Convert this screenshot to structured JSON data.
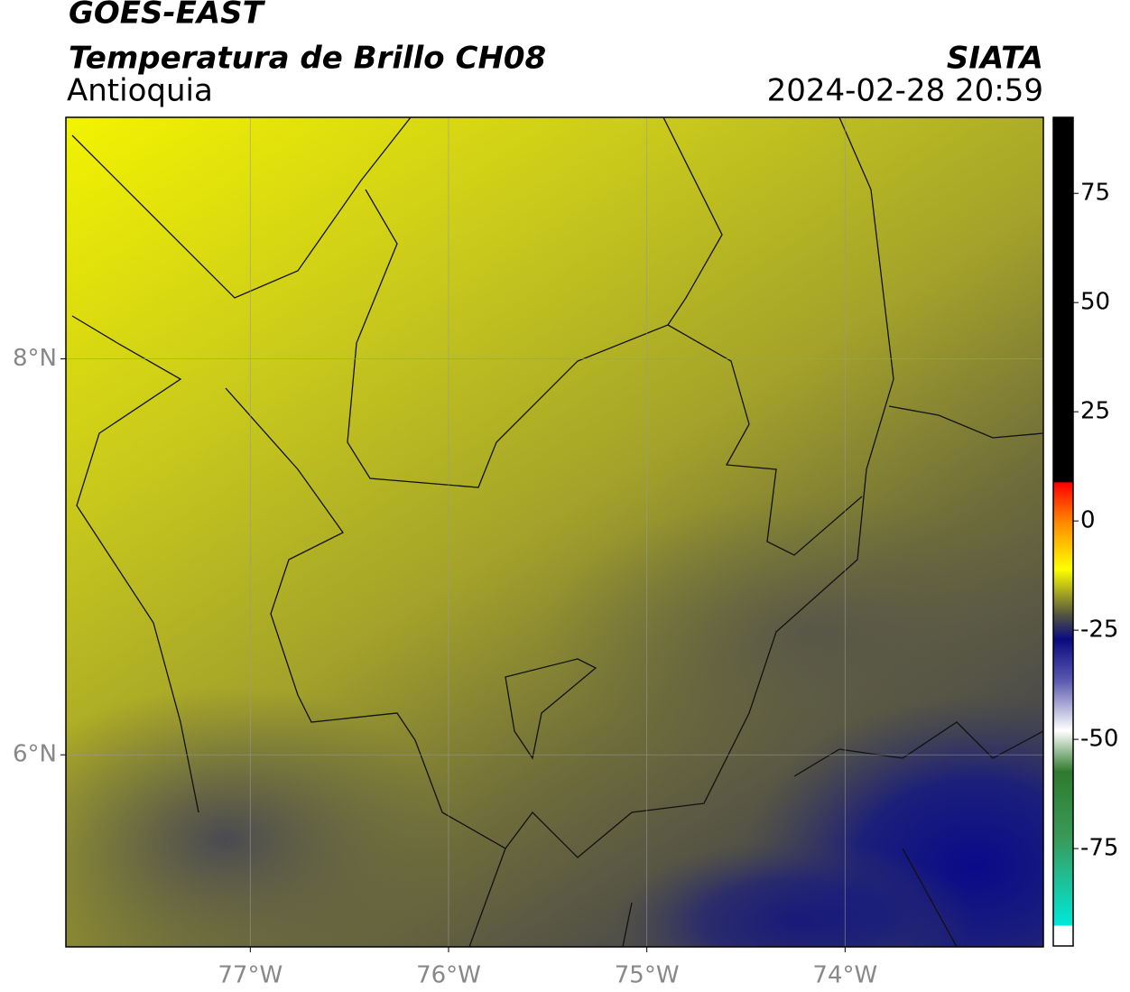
{
  "header": {
    "title": "GOES-EAST",
    "subtitle": "Temperatura de Brillo CH08",
    "region": "Antioquia",
    "source": "SIATA",
    "datetime": "2024-02-28 20:59"
  },
  "map": {
    "xlim": [
      -77.93,
      -73.0
    ],
    "ylim": [
      5.03,
      9.22
    ],
    "xticks": [
      {
        "value": -77,
        "label": "77°W"
      },
      {
        "value": -76,
        "label": "76°W"
      },
      {
        "value": -75,
        "label": "75°W"
      },
      {
        "value": -74,
        "label": "74°W"
      }
    ],
    "yticks": [
      {
        "value": 8,
        "label": "8°N"
      },
      {
        "value": 6,
        "label": "6°N"
      }
    ],
    "grid": true
  },
  "colorbar": {
    "lim": [
      -97.3,
      92.4
    ],
    "ticks": [
      75,
      50,
      25,
      0,
      -25,
      -50,
      -75
    ]
  }
}
